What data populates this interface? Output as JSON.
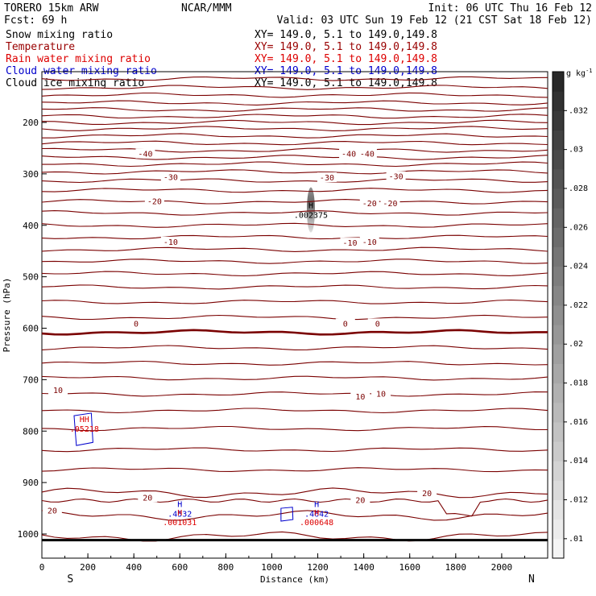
{
  "header": {
    "model": "TORERO  15km ARW",
    "org": "NCAR/MMM",
    "init": "Init: 06 UTC Thu 16 Feb 12",
    "fcst": "Fcst:    69 h",
    "valid": "Valid: 03 UTC Sun 19 Feb 12 (21 CST Sat 18 Feb 12)"
  },
  "legend": [
    {
      "name": "Snow mixing ratio",
      "xy": "XY= 149.0,   5.1 to 149.0,149.8",
      "color": "#000000"
    },
    {
      "name": "Temperature",
      "xy": "XY= 149.0,   5.1 to 149.0,149.8",
      "color": "#990000"
    },
    {
      "name": "Rain water mixing ratio",
      "xy": "XY= 149.0,   5.1 to 149.0,149.8",
      "color": "#dd0000"
    },
    {
      "name": "Cloud water mixing ratio",
      "xy": "XY= 149.0,   5.1 to 149.0,149.8",
      "color": "#0000cc"
    },
    {
      "name": "Cloud ice mixing ratio",
      "xy": "XY= 149.0,   5.1 to 149.0,149.8",
      "color": "#000000"
    }
  ],
  "chart_data": {
    "type": "cross-section",
    "xlabel": "Distance (km)",
    "ylabel": "Pressure (hPa)",
    "xlim": [
      0,
      2200
    ],
    "ylim": [
      1050,
      100
    ],
    "x_ticks": [
      0,
      200,
      400,
      600,
      800,
      1000,
      1200,
      1400,
      1600,
      1800,
      2000
    ],
    "y_ticks": [
      200,
      300,
      400,
      500,
      600,
      700,
      800,
      900,
      1000
    ],
    "endpoints": {
      "left": "S",
      "right": "N"
    },
    "temperature_contours_hPa": [
      115,
      132,
      147,
      162,
      175,
      188,
      200,
      212,
      226,
      240,
      254,
      268,
      281,
      296,
      313,
      332,
      354,
      376,
      400,
      423,
      447,
      470,
      494,
      520,
      549,
      579,
      608,
      638,
      668,
      697,
      728,
      760,
      795,
      836,
      875,
      920,
      964,
      1005
    ],
    "temperature_labels": [
      {
        "text": "-40",
        "x": 450,
        "p": 262
      },
      {
        "text": "-40",
        "x": 1335,
        "p": 262
      },
      {
        "text": "-40",
        "x": 1415,
        "p": 262
      },
      {
        "text": "-30",
        "x": 560,
        "p": 307
      },
      {
        "text": "-30",
        "x": 1240,
        "p": 308
      },
      {
        "text": "-30",
        "x": 1540,
        "p": 306
      },
      {
        "text": "-20",
        "x": 490,
        "p": 354
      },
      {
        "text": "-20",
        "x": 1425,
        "p": 358
      },
      {
        "text": "-20",
        "x": 1515,
        "p": 358
      },
      {
        "text": "-10",
        "x": 560,
        "p": 433
      },
      {
        "text": "-10",
        "x": 1340,
        "p": 435
      },
      {
        "text": "-10",
        "x": 1425,
        "p": 433
      },
      {
        "text": "0",
        "x": 410,
        "p": 592
      },
      {
        "text": "0",
        "x": 1320,
        "p": 592
      },
      {
        "text": "0",
        "x": 1460,
        "p": 592
      },
      {
        "text": "10",
        "x": 70,
        "p": 721
      },
      {
        "text": "10",
        "x": 1385,
        "p": 734
      },
      {
        "text": "10",
        "x": 1475,
        "p": 728
      },
      {
        "text": "20",
        "x": 45,
        "p": 955
      },
      {
        "text": "20",
        "x": 460,
        "p": 930
      },
      {
        "text": "20",
        "x": 1385,
        "p": 935
      },
      {
        "text": "20",
        "x": 1675,
        "p": 922
      }
    ],
    "extrema": [
      {
        "mark": "H",
        "value": ".002375",
        "x": 1170,
        "p": 382,
        "color": "#000000"
      },
      {
        "mark": "HH",
        "value": ".05218",
        "x": 185,
        "p": 798,
        "color": "#dd0000"
      },
      {
        "mark": "H",
        "value": ".4532",
        "x": 600,
        "p": 963,
        "color": "#0000cc"
      },
      {
        "mark": "H",
        "value": ".001031",
        "x": 600,
        "p": 980,
        "color": "#dd0000"
      },
      {
        "mark": "H",
        "value": ".4642",
        "x": 1195,
        "p": 963,
        "color": "#0000cc"
      },
      {
        "mark": "H",
        "value": ".000648",
        "x": 1195,
        "p": 980,
        "color": "#dd0000"
      }
    ],
    "colorbar": {
      "units": "g kg",
      "units_exp": "-1",
      "ticks": [
        ".01",
        ".012",
        ".014",
        ".016",
        ".018",
        ".02",
        ".022",
        ".024",
        ".026",
        ".028",
        ".03",
        ".032"
      ],
      "range": [
        0.009,
        0.034
      ]
    }
  }
}
